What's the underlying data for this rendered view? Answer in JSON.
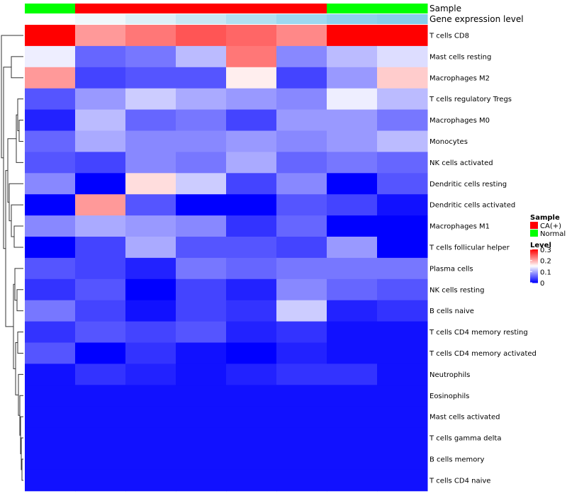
{
  "chart_data": {
    "type": "heatmap",
    "title": "",
    "rows": [
      "T cells CD8",
      "Mast cells resting",
      "Macrophages M2",
      "T cells regulatory  Tregs",
      "Macrophages M0",
      "Monocytes",
      "NK cells activated",
      "Dendritic cells resting",
      "Dendritic cells activated",
      "Macrophages M1",
      "T cells follicular helper",
      "Plasma cells",
      "NK cells resting",
      "B cells naive",
      "T cells CD4 memory resting",
      "T cells CD4 memory activated",
      "Neutrophils",
      "Eosinophils",
      "Mast cells activated",
      "T cells gamma delta",
      "B cells memory",
      "T cells CD4 naive"
    ],
    "values": [
      [
        0.3,
        0.21,
        0.23,
        0.25,
        0.24,
        0.22,
        0.3,
        0.3
      ],
      [
        0.14,
        0.06,
        0.07,
        0.11,
        0.23,
        0.08,
        0.11,
        0.13
      ],
      [
        0.21,
        0.04,
        0.05,
        0.05,
        0.16,
        0.04,
        0.09,
        0.18
      ],
      [
        0.05,
        0.09,
        0.12,
        0.1,
        0.09,
        0.08,
        0.14,
        0.11
      ],
      [
        0.02,
        0.11,
        0.06,
        0.07,
        0.04,
        0.09,
        0.09,
        0.07
      ],
      [
        0.06,
        0.1,
        0.08,
        0.08,
        0.09,
        0.08,
        0.09,
        0.11
      ],
      [
        0.05,
        0.04,
        0.08,
        0.07,
        0.1,
        0.06,
        0.07,
        0.06
      ],
      [
        0.08,
        0.0,
        0.17,
        0.12,
        0.04,
        0.08,
        0.0,
        0.05
      ],
      [
        0.0,
        0.21,
        0.05,
        0.0,
        0.0,
        0.05,
        0.04,
        0.01
      ],
      [
        0.08,
        0.1,
        0.09,
        0.08,
        0.03,
        0.06,
        0.0,
        0.0
      ],
      [
        0.0,
        0.04,
        0.1,
        0.05,
        0.05,
        0.04,
        0.09,
        0.0
      ],
      [
        0.05,
        0.04,
        0.02,
        0.07,
        0.06,
        0.07,
        0.07,
        0.07
      ],
      [
        0.03,
        0.05,
        0.0,
        0.04,
        0.02,
        0.08,
        0.06,
        0.05
      ],
      [
        0.07,
        0.04,
        0.01,
        0.04,
        0.03,
        0.12,
        0.02,
        0.03
      ],
      [
        0.03,
        0.05,
        0.04,
        0.05,
        0.02,
        0.03,
        0.01,
        0.01
      ],
      [
        0.05,
        0.0,
        0.03,
        0.01,
        0.0,
        0.02,
        0.01,
        0.01
      ],
      [
        0.01,
        0.03,
        0.02,
        0.01,
        0.02,
        0.03,
        0.03,
        0.01
      ],
      [
        0.01,
        0.01,
        0.01,
        0.01,
        0.01,
        0.01,
        0.01,
        0.01
      ],
      [
        0.01,
        0.01,
        0.01,
        0.01,
        0.01,
        0.01,
        0.01,
        0.01
      ],
      [
        0.01,
        0.01,
        0.01,
        0.01,
        0.01,
        0.01,
        0.01,
        0.01
      ],
      [
        0.01,
        0.01,
        0.01,
        0.01,
        0.01,
        0.01,
        0.01,
        0.01
      ],
      [
        0.01,
        0.01,
        0.01,
        0.01,
        0.01,
        0.01,
        0.01,
        0.01
      ]
    ],
    "column_annotations": {
      "sample_label": "Sample",
      "expression_label": "Gene expression level",
      "sample": [
        "Normal",
        "CA(+)",
        "CA(+)",
        "CA(+)",
        "CA(+)",
        "CA(+)",
        "Normal",
        "Normal"
      ],
      "expression_colors": [
        "#ffffff",
        "#f0f8fb",
        "#ddf0f8",
        "#c8e8f4",
        "#b2e0f2",
        "#9ed8f0",
        "#8ed1ed",
        "#87ceeb"
      ]
    },
    "legend": {
      "placement": "right",
      "sample_title": "Sample",
      "sample_entries": [
        {
          "label": "CA(+)",
          "color": "#ff0000"
        },
        {
          "label": "Normal",
          "color": "#00ff00"
        }
      ],
      "level_title": "Level",
      "level_ticks": [
        "0.3",
        "0.2",
        "0.1",
        "0"
      ],
      "level_tick_values": [
        0.3,
        0.2,
        0.1,
        0
      ]
    },
    "color_scale": {
      "min": 0,
      "mid": 0.15,
      "max": 0.3,
      "low": "#0000ff",
      "midcolor": "#ffffff",
      "high": "#ff0000"
    },
    "dendrogram": "row"
  }
}
